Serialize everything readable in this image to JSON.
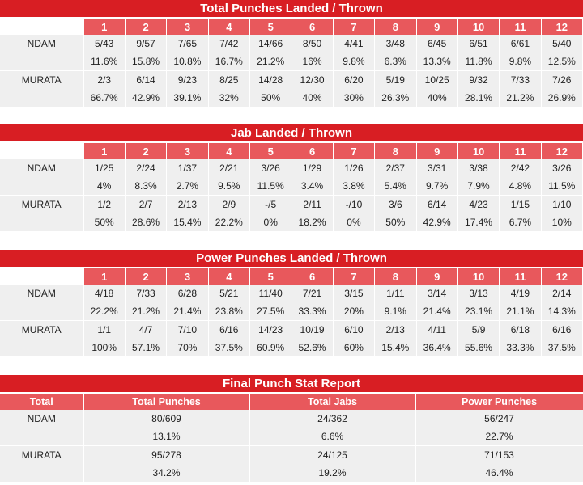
{
  "tables": [
    {
      "title": "Total Punches Landed / Thrown",
      "rounds": [
        "1",
        "2",
        "3",
        "4",
        "5",
        "6",
        "7",
        "8",
        "9",
        "10",
        "11",
        "12"
      ],
      "rows": [
        {
          "name": "NDAM",
          "values": [
            "5/43",
            "9/57",
            "7/65",
            "7/42",
            "14/66",
            "8/50",
            "4/41",
            "3/48",
            "6/45",
            "6/51",
            "6/61",
            "5/40"
          ],
          "pct": [
            "11.6%",
            "15.8%",
            "10.8%",
            "16.7%",
            "21.2%",
            "16%",
            "9.8%",
            "6.3%",
            "13.3%",
            "11.8%",
            "9.8%",
            "12.5%"
          ]
        },
        {
          "name": "MURATA",
          "values": [
            "2/3",
            "6/14",
            "9/23",
            "8/25",
            "14/28",
            "12/30",
            "6/20",
            "5/19",
            "10/25",
            "9/32",
            "7/33",
            "7/26"
          ],
          "pct": [
            "66.7%",
            "42.9%",
            "39.1%",
            "32%",
            "50%",
            "40%",
            "30%",
            "26.3%",
            "40%",
            "28.1%",
            "21.2%",
            "26.9%"
          ]
        }
      ]
    },
    {
      "title": "Jab Landed / Thrown",
      "rounds": [
        "1",
        "2",
        "3",
        "4",
        "5",
        "6",
        "7",
        "8",
        "9",
        "10",
        "11",
        "12"
      ],
      "rows": [
        {
          "name": "NDAM",
          "values": [
            "1/25",
            "2/24",
            "1/37",
            "2/21",
            "3/26",
            "1/29",
            "1/26",
            "2/37",
            "3/31",
            "3/38",
            "2/42",
            "3/26"
          ],
          "pct": [
            "4%",
            "8.3%",
            "2.7%",
            "9.5%",
            "11.5%",
            "3.4%",
            "3.8%",
            "5.4%",
            "9.7%",
            "7.9%",
            "4.8%",
            "11.5%"
          ]
        },
        {
          "name": "MURATA",
          "values": [
            "1/2",
            "2/7",
            "2/13",
            "2/9",
            "-/5",
            "2/11",
            "-/10",
            "3/6",
            "6/14",
            "4/23",
            "1/15",
            "1/10"
          ],
          "pct": [
            "50%",
            "28.6%",
            "15.4%",
            "22.2%",
            "0%",
            "18.2%",
            "0%",
            "50%",
            "42.9%",
            "17.4%",
            "6.7%",
            "10%"
          ]
        }
      ]
    },
    {
      "title": "Power Punches Landed / Thrown",
      "rounds": [
        "1",
        "2",
        "3",
        "4",
        "5",
        "6",
        "7",
        "8",
        "9",
        "10",
        "11",
        "12"
      ],
      "rows": [
        {
          "name": "NDAM",
          "values": [
            "4/18",
            "7/33",
            "6/28",
            "5/21",
            "11/40",
            "7/21",
            "3/15",
            "1/11",
            "3/14",
            "3/13",
            "4/19",
            "2/14"
          ],
          "pct": [
            "22.2%",
            "21.2%",
            "21.4%",
            "23.8%",
            "27.5%",
            "33.3%",
            "20%",
            "9.1%",
            "21.4%",
            "23.1%",
            "21.1%",
            "14.3%"
          ]
        },
        {
          "name": "MURATA",
          "values": [
            "1/1",
            "4/7",
            "7/10",
            "6/16",
            "14/23",
            "10/19",
            "6/10",
            "2/13",
            "4/11",
            "5/9",
            "6/18",
            "6/16"
          ],
          "pct": [
            "100%",
            "57.1%",
            "70%",
            "37.5%",
            "60.9%",
            "52.6%",
            "60%",
            "15.4%",
            "36.4%",
            "55.6%",
            "33.3%",
            "37.5%"
          ]
        }
      ]
    }
  ],
  "final": {
    "title": "Final Punch Stat Report",
    "headers": [
      "Total",
      "Total Punches",
      "Total Jabs",
      "Power Punches"
    ],
    "rows": [
      {
        "name": "NDAM",
        "values": [
          "80/609",
          "24/362",
          "56/247"
        ],
        "pct": [
          "13.1%",
          "6.6%",
          "22.7%"
        ]
      },
      {
        "name": "MURATA",
        "values": [
          "95/278",
          "24/125",
          "71/153"
        ],
        "pct": [
          "34.2%",
          "19.2%",
          "46.4%"
        ]
      }
    ]
  },
  "colors": {
    "title_red": "#d81e23",
    "header_red": "#e8585c",
    "cell_gray": "#efefef"
  }
}
